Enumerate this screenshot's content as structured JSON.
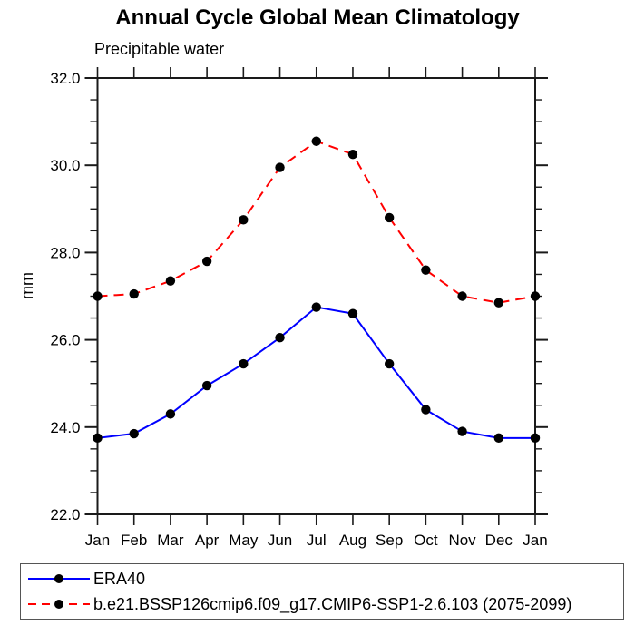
{
  "figure": {
    "background": "#ffffff"
  },
  "chart_data": {
    "type": "line",
    "title": "Annual Cycle Global Mean Climatology",
    "subtitle": "Precipitable water",
    "ylabel": "mm",
    "categories": [
      "Jan",
      "Feb",
      "Mar",
      "Apr",
      "May",
      "Jun",
      "Jul",
      "Aug",
      "Sep",
      "Oct",
      "Nov",
      "Dec",
      "Jan"
    ],
    "ylim": [
      22.0,
      32.0
    ],
    "ytick_labels": [
      "22.0",
      "24.0",
      "26.0",
      "28.0",
      "30.0",
      "32.0"
    ],
    "ytick_major_step": 2.0,
    "ytick_minor_step": 0.5,
    "grid": false,
    "legend_position": "bottom-outside-box",
    "axis_color": "#1a1a1a",
    "marker_color": "#000000",
    "series": [
      {
        "name": "ERA40",
        "color": "#0000ff",
        "line_style": "solid",
        "marker": "filled-circle",
        "values": [
          23.75,
          23.85,
          24.3,
          24.95,
          25.45,
          26.05,
          26.75,
          26.6,
          25.45,
          24.4,
          23.9,
          23.75,
          23.75
        ]
      },
      {
        "name": "b.e21.BSSP126cmip6.f09_g17.CMIP6-SSP1-2.6.103 (2075-2099)",
        "color": "#ff0000",
        "line_style": "dashed",
        "marker": "filled-circle",
        "values": [
          27.0,
          27.05,
          27.35,
          27.8,
          28.75,
          29.95,
          30.55,
          30.25,
          28.8,
          27.6,
          27.0,
          26.85,
          27.0
        ]
      }
    ]
  }
}
